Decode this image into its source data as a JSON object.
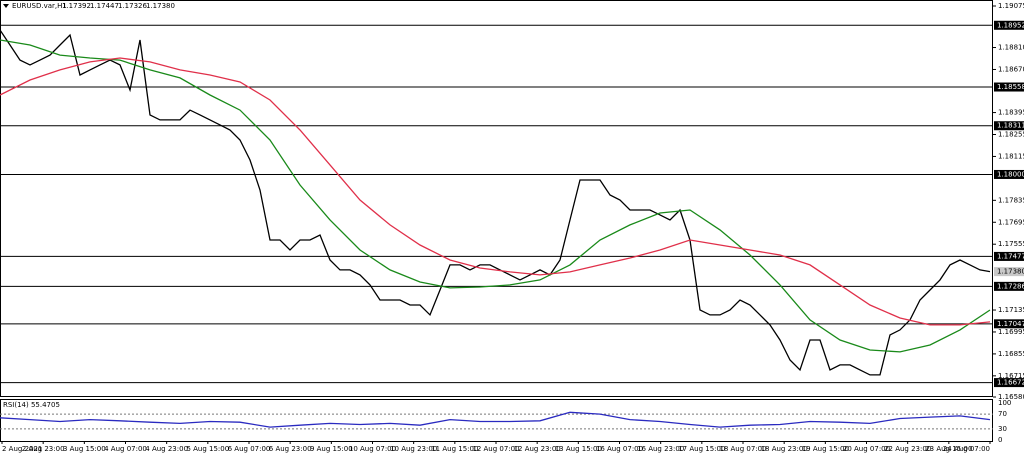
{
  "chart_data": {
    "type": "line",
    "title": "EURUSD.var,H1",
    "quote": [
      "1.17392",
      "1.17447",
      "1.17326",
      "1.17380"
    ],
    "ylim": [
      1.1658,
      1.19075
    ],
    "yticks": [
      1.19075,
      {
        "value": 1.1881,
        "label": "1.18810"
      },
      {
        "value": 1.1867,
        "label": "1.18670"
      },
      1.18395,
      1.18255,
      1.18115,
      1.17835,
      1.17695,
      1.17555,
      1.17135,
      1.16995,
      1.16855,
      1.16715,
      {
        "value": 1.1658,
        "label": "1.16580"
      }
    ],
    "levels": [
      {
        "value": 1.18952,
        "label": "1.18952"
      },
      {
        "value": 1.18558,
        "label": "1.18558"
      },
      {
        "value": 1.18311,
        "label": "1.18311"
      },
      {
        "value": 1.18,
        "label": "1.18000"
      },
      {
        "value": 1.17477,
        "label": "1.17477"
      },
      {
        "value": 1.17286,
        "label": "1.17286"
      },
      {
        "value": 1.17047,
        "label": "1.17047"
      },
      {
        "value": 1.16672,
        "label": "1.16672"
      }
    ],
    "current": {
      "value": 1.1738,
      "label": "1.17380"
    },
    "xtick_labels": [
      "2 Aug 2021",
      "2 Aug 23:00",
      "3 Aug 15:00",
      "4 Aug 07:00",
      "4 Aug 23:00",
      "5 Aug 15:00",
      "6 Aug 07:00",
      "6 Aug 23:00",
      "9 Aug 15:00",
      "10 Aug 07:00",
      "10 Aug 23:00",
      "11 Aug 15:00",
      "12 Aug 07:00",
      "12 Aug 23:00",
      "13 Aug 15:00",
      "16 Aug 07:00",
      "16 Aug 23:00",
      "17 Aug 15:00",
      "18 Aug 07:00",
      "18 Aug 23:00",
      "19 Aug 15:00",
      "20 Aug 07:00",
      "22 Aug 23:00",
      "23 Aug 15:00",
      "24 Aug 07:00"
    ],
    "series": [
      {
        "color": "#000000",
        "values": [
          1.18922,
          1.18826,
          1.1873,
          1.18699,
          1.1873,
          1.18762,
          1.18826,
          1.1889,
          1.18635,
          1.18667,
          1.18699,
          1.1873,
          1.18699,
          1.18539,
          1.18858,
          1.1838,
          1.18348,
          1.18348,
          1.18348,
          1.18411,
          1.1838,
          1.18348,
          1.18316,
          1.18284,
          1.1822,
          1.18092,
          1.17901,
          1.17582,
          1.17582,
          1.17518,
          1.17582,
          1.17582,
          1.17614,
          1.17454,
          1.17391,
          1.17391,
          1.17359,
          1.17295,
          1.17199,
          1.17199,
          1.17199,
          1.17167,
          1.17167,
          1.17104,
          1.17263,
          1.17423,
          1.17423,
          1.17391,
          1.17423,
          1.17423,
          1.17391,
          1.17359,
          1.17327,
          1.17359,
          1.17391,
          1.17359,
          1.17454,
          1.1771,
          1.17965,
          1.17965,
          1.17965,
          1.17869,
          1.17837,
          1.17773,
          1.17773,
          1.17773,
          1.17742,
          1.1771,
          1.17773,
          1.17582,
          1.17135,
          1.17104,
          1.17104,
          1.17135,
          1.17199,
          1.17167,
          1.17104,
          1.1704,
          1.16944,
          1.16816,
          1.16753,
          1.16944,
          1.16944,
          1.16753,
          1.16785,
          1.16785,
          1.16753,
          1.16721,
          1.16721,
          1.16976,
          1.17008,
          1.17072,
          1.17199,
          1.17263,
          1.17327,
          1.17423,
          1.17454,
          1.17423,
          1.17391,
          1.1738
        ]
      },
      {
        "color": "#1a8a1a",
        "values": [
          1.18858,
          1.18826,
          1.18762,
          1.18743,
          1.1873,
          1.18667,
          1.18616,
          1.18507,
          1.18411,
          1.1822,
          1.17933,
          1.1771,
          1.17518,
          1.17391,
          1.17314,
          1.17276,
          1.17282,
          1.17295,
          1.17327,
          1.17423,
          1.17582,
          1.17678,
          1.17754,
          1.17773,
          1.17646,
          1.17486,
          1.17295,
          1.17072,
          1.16944,
          1.1688,
          1.16868,
          1.16912,
          1.17008,
          1.17135
        ]
      },
      {
        "color": "#e0304a",
        "values": [
          1.18507,
          1.18603,
          1.18667,
          1.18718,
          1.18743,
          1.18718,
          1.18667,
          1.18635,
          1.1859,
          1.18475,
          1.18284,
          1.18061,
          1.17837,
          1.17678,
          1.1755,
          1.17454,
          1.17403,
          1.17378,
          1.17359,
          1.17378,
          1.17423,
          1.17467,
          1.17518,
          1.17582,
          1.1755,
          1.17518,
          1.17486,
          1.17423,
          1.17295,
          1.17167,
          1.17084,
          1.1704,
          1.1704,
          1.17059
        ]
      }
    ],
    "rsi": {
      "title": "RSI(14) 55.4705",
      "color": "#2a2ac0",
      "ylim": [
        0,
        100
      ],
      "yticks": [
        100,
        70,
        30,
        0
      ],
      "values": [
        60,
        55,
        50,
        55,
        52,
        48,
        45,
        50,
        48,
        35,
        40,
        45,
        42,
        45,
        40,
        55,
        50,
        50,
        52,
        75,
        70,
        55,
        50,
        42,
        35,
        40,
        42,
        50,
        48,
        45,
        58,
        62,
        65,
        55
      ]
    }
  }
}
